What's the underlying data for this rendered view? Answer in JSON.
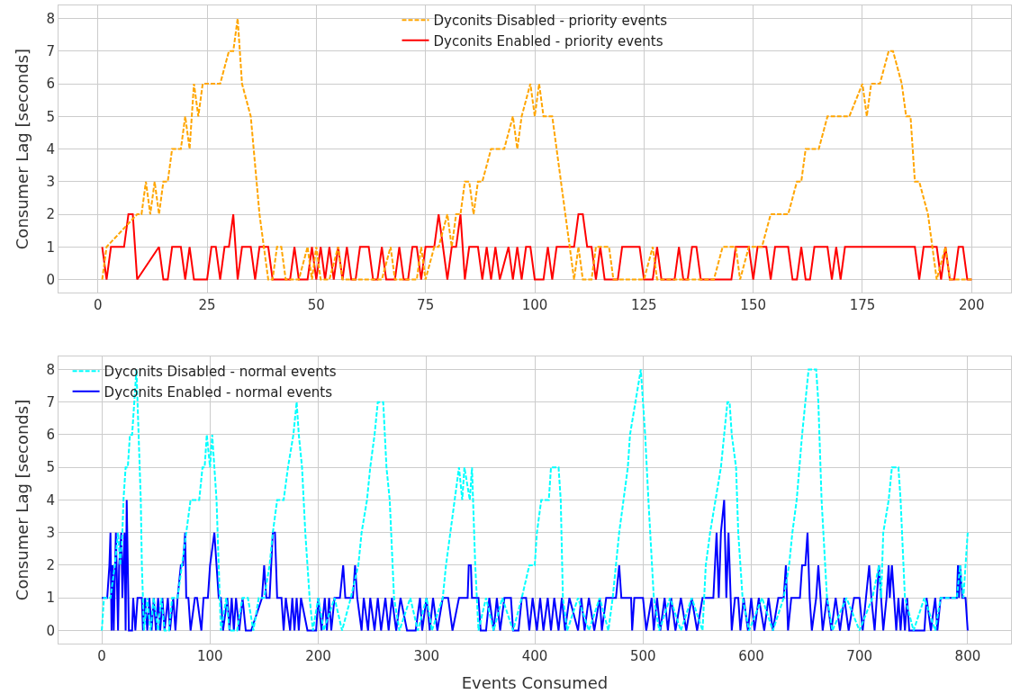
{
  "chart_data": [
    {
      "type": "line",
      "ylabel": "Consumer Lag [seconds]",
      "xlim": [
        -9,
        209
      ],
      "xticks": [
        0,
        25,
        50,
        75,
        100,
        125,
        150,
        175,
        200
      ],
      "ylim": [
        -0.4,
        8.4
      ],
      "yticks": [
        0,
        1,
        2,
        3,
        4,
        5,
        6,
        7,
        8
      ],
      "grid": true,
      "legend": "top",
      "marker": "none",
      "series": [
        {
          "name": "Dyconits Disabled - priority events",
          "color": "#ffa500",
          "line_style": "dashed",
          "x": [
            1,
            2,
            9,
            10,
            11,
            12,
            13,
            14,
            15,
            16,
            17,
            19,
            20,
            21,
            22,
            23,
            24,
            28,
            30,
            31,
            32,
            33,
            35,
            37,
            39,
            40,
            41,
            42,
            43,
            46,
            48,
            49,
            50,
            51,
            53,
            55,
            56,
            59,
            61,
            65,
            67,
            68,
            70,
            73,
            74,
            75,
            77,
            78,
            80,
            81,
            82,
            83,
            84,
            85,
            86,
            87,
            88,
            90,
            93,
            95,
            96,
            97,
            99,
            100,
            101,
            102,
            104,
            106,
            107,
            108,
            109,
            110,
            111,
            113,
            114,
            117,
            118,
            125,
            127,
            128,
            131,
            136,
            141,
            143,
            146,
            147,
            149,
            152,
            154,
            158,
            160,
            161,
            162,
            165,
            167,
            172,
            175,
            176,
            177,
            179,
            181,
            182,
            184,
            185,
            186,
            187,
            188,
            190,
            191,
            192,
            194,
            195,
            200
          ],
          "values": [
            0,
            1,
            2,
            2,
            3,
            2,
            3,
            2,
            3,
            3,
            4,
            4,
            5,
            4,
            6,
            5,
            6,
            6,
            7,
            7,
            8,
            6,
            5,
            2,
            0,
            0,
            1,
            1,
            0,
            0,
            1,
            0,
            1,
            0,
            0,
            1,
            0,
            0,
            0,
            0,
            1,
            0,
            0,
            0,
            1,
            0,
            1,
            1,
            2,
            1,
            2,
            2,
            3,
            3,
            2,
            3,
            3,
            4,
            4,
            5,
            4,
            5,
            6,
            5,
            6,
            5,
            5,
            3,
            2,
            1,
            0,
            1,
            0,
            0,
            1,
            1,
            0,
            0,
            1,
            0,
            0,
            0,
            0,
            1,
            1,
            0,
            1,
            1,
            2,
            2,
            3,
            3,
            4,
            4,
            5,
            5,
            6,
            5,
            6,
            6,
            7,
            7,
            6,
            5,
            5,
            3,
            3,
            2,
            1,
            0,
            1,
            0,
            0
          ]
        },
        {
          "name": "Dyconits Enabled - priority events",
          "color": "#ff0000",
          "line_style": "solid",
          "x": [
            1,
            2,
            3,
            6,
            7,
            8,
            9,
            14,
            15,
            16,
            17,
            19,
            20,
            21,
            22,
            25,
            26,
            27,
            28,
            29,
            30,
            31,
            32,
            33,
            35,
            36,
            37,
            39,
            40,
            44,
            45,
            46,
            48,
            49,
            50,
            51,
            52,
            53,
            54,
            55,
            56,
            57,
            58,
            59,
            60,
            62,
            63,
            64,
            65,
            66,
            68,
            69,
            70,
            71,
            72,
            73,
            74,
            75,
            77,
            78,
            80,
            81,
            82,
            83,
            84,
            85,
            87,
            88,
            89,
            90,
            91,
            92,
            94,
            95,
            96,
            97,
            98,
            99,
            100,
            102,
            103,
            104,
            105,
            109,
            110,
            111,
            112,
            113,
            114,
            115,
            116,
            119,
            120,
            124,
            125,
            127,
            128,
            129,
            132,
            133,
            134,
            135,
            136,
            137,
            138,
            145,
            146,
            149,
            150,
            151,
            153,
            154,
            155,
            158,
            159,
            160,
            161,
            162,
            163,
            164,
            167,
            168,
            169,
            170,
            171,
            187,
            188,
            189,
            192,
            193,
            194,
            195,
            196,
            197,
            198,
            199,
            200
          ],
          "values": [
            1,
            0,
            1,
            1,
            2,
            2,
            0,
            1,
            0,
            0,
            1,
            1,
            0,
            1,
            0,
            0,
            1,
            1,
            0,
            1,
            1,
            2,
            0,
            1,
            1,
            0,
            1,
            1,
            0,
            0,
            1,
            0,
            0,
            1,
            0,
            1,
            0,
            1,
            0,
            1,
            0,
            1,
            0,
            0,
            1,
            1,
            0,
            0,
            1,
            0,
            0,
            1,
            0,
            0,
            1,
            1,
            0,
            1,
            1,
            2,
            0,
            1,
            1,
            2,
            0,
            1,
            1,
            0,
            1,
            0,
            1,
            0,
            1,
            0,
            1,
            0,
            1,
            1,
            0,
            0,
            1,
            0,
            1,
            1,
            2,
            2,
            1,
            1,
            0,
            1,
            0,
            0,
            1,
            1,
            0,
            0,
            1,
            0,
            0,
            1,
            0,
            0,
            1,
            1,
            0,
            0,
            1,
            1,
            0,
            1,
            1,
            0,
            1,
            1,
            0,
            0,
            1,
            0,
            0,
            1,
            1,
            0,
            1,
            0,
            1,
            1,
            0,
            1,
            1,
            0,
            1,
            0,
            0,
            1,
            1,
            0,
            0
          ]
        }
      ]
    },
    {
      "type": "line",
      "xlabel": "Events Consumed",
      "ylabel": "Consumer Lag [seconds]",
      "xlim": [
        -40,
        840
      ],
      "xticks": [
        0,
        100,
        200,
        300,
        400,
        500,
        600,
        700,
        800
      ],
      "ylim": [
        -0.4,
        8.4
      ],
      "yticks": [
        0,
        1,
        2,
        3,
        4,
        5,
        6,
        7,
        8
      ],
      "grid": true,
      "legend": "top left",
      "marker": "none",
      "series": [
        {
          "name": "Dyconits Disabled - normal events",
          "color": "#00ffff",
          "line_style": "dashed",
          "x": [
            0,
            2,
            8,
            12,
            15,
            17,
            19,
            20,
            22,
            24,
            26,
            28,
            30,
            32,
            34,
            36,
            37,
            39,
            42,
            45,
            48,
            52,
            55,
            58,
            62,
            65,
            70,
            74,
            78,
            82,
            90,
            93,
            95,
            97,
            100,
            102,
            104,
            106,
            108,
            110,
            115,
            118,
            125,
            130,
            135,
            140,
            145,
            150,
            155,
            158,
            162,
            168,
            172,
            177,
            180,
            182,
            185,
            188,
            192,
            195,
            200,
            205,
            215,
            222,
            230,
            237,
            240,
            245,
            248,
            252,
            255,
            260,
            263,
            266,
            270,
            275,
            285,
            292,
            300,
            305,
            315,
            318,
            322,
            326,
            330,
            333,
            335,
            340,
            342,
            345,
            348,
            355,
            362,
            370,
            380,
            388,
            395,
            400,
            402,
            406,
            413,
            415,
            422,
            424,
            426,
            430,
            440,
            450,
            460,
            468,
            472,
            475,
            478,
            482,
            486,
            488,
            493,
            498,
            500,
            502,
            505,
            510,
            515,
            525,
            535,
            545,
            555,
            558,
            562,
            567,
            572,
            575,
            578,
            580,
            582,
            586,
            588,
            592,
            598,
            610,
            620,
            630,
            635,
            638,
            642,
            647,
            650,
            653,
            660,
            662,
            665,
            670,
            675,
            688,
            700,
            712,
            718,
            720,
            722,
            727,
            730,
            736,
            738,
            742,
            750,
            760,
            770,
            775,
            790,
            793,
            796,
            800
          ],
          "values": [
            0,
            1,
            1,
            2,
            3,
            2,
            3,
            4,
            5,
            5,
            6,
            6,
            7,
            8,
            6,
            4,
            2,
            0,
            1,
            0,
            1,
            0,
            1,
            0,
            0,
            1,
            1,
            2,
            3,
            4,
            4,
            5,
            5,
            6,
            5,
            6,
            5,
            4,
            2,
            0,
            1,
            0,
            0,
            1,
            1,
            0,
            1,
            1,
            2,
            3,
            4,
            4,
            5,
            6,
            7,
            6,
            5,
            3,
            1,
            0,
            1,
            0,
            1,
            0,
            1,
            2,
            3,
            4,
            5,
            6,
            7,
            7,
            5,
            4,
            1,
            0,
            1,
            0,
            1,
            0,
            1,
            2,
            3,
            4,
            5,
            4,
            5,
            4,
            5,
            2,
            0,
            1,
            0,
            1,
            0,
            1,
            2,
            2,
            3,
            4,
            4,
            5,
            5,
            4,
            1,
            0,
            1,
            0,
            1,
            0,
            1,
            2,
            3,
            4,
            5,
            6,
            7,
            8,
            7,
            6,
            4,
            1,
            0,
            1,
            0,
            1,
            0,
            2,
            3,
            4,
            5,
            6,
            7,
            7,
            6,
            5,
            3,
            1,
            0,
            1,
            0,
            1,
            2,
            3,
            4,
            6,
            7,
            8,
            8,
            7,
            4,
            1,
            0,
            1,
            0,
            1,
            2,
            1,
            3,
            4,
            5,
            5,
            4,
            1,
            0,
            1,
            0,
            1,
            1,
            2,
            1,
            3
          ]
        },
        {
          "name": "Dyconits Enabled - normal events",
          "color": "#0000ff",
          "line_style": "solid",
          "x": [
            0,
            5,
            7,
            8,
            9,
            10,
            11,
            13,
            15,
            16,
            18,
            19,
            21,
            22,
            23,
            25,
            28,
            29,
            31,
            33,
            37,
            38,
            40,
            42,
            44,
            46,
            48,
            50,
            52,
            54,
            56,
            58,
            61,
            63,
            66,
            68,
            70,
            73,
            75,
            77,
            78,
            80,
            82,
            86,
            88,
            92,
            94,
            98,
            100,
            104,
            106,
            108,
            110,
            112,
            116,
            118,
            120,
            122,
            124,
            127,
            130,
            133,
            138,
            148,
            150,
            152,
            155,
            158,
            160,
            162,
            166,
            168,
            170,
            174,
            176,
            178,
            180,
            182,
            184,
            190,
            198,
            200,
            203,
            206,
            208,
            210,
            212,
            215,
            220,
            223,
            225,
            232,
            234,
            236,
            240,
            242,
            246,
            248,
            252,
            255,
            258,
            262,
            265,
            268,
            272,
            276,
            282,
            290,
            294,
            296,
            300,
            303,
            306,
            310,
            315,
            320,
            324,
            330,
            338,
            339,
            341,
            342,
            348,
            350,
            355,
            358,
            362,
            365,
            368,
            372,
            378,
            380,
            385,
            388,
            392,
            395,
            398,
            402,
            405,
            408,
            412,
            415,
            418,
            422,
            425,
            428,
            432,
            440,
            443,
            446,
            450,
            455,
            460,
            462,
            466,
            472,
            475,
            478,
            480,
            489,
            490,
            492,
            500,
            503,
            508,
            510,
            513,
            516,
            520,
            523,
            526,
            530,
            535,
            540,
            545,
            550,
            555,
            565,
            568,
            570,
            572,
            575,
            577,
            579,
            581,
            582,
            585,
            588,
            590,
            593,
            597,
            600,
            603,
            607,
            612,
            616,
            620,
            625,
            630,
            632,
            634,
            637,
            645,
            647,
            650,
            652,
            654,
            656,
            660,
            662,
            664,
            666,
            670,
            674,
            678,
            682,
            686,
            690,
            695,
            700,
            703,
            706,
            709,
            711,
            714,
            716,
            718,
            720,
            722,
            725,
            727,
            728,
            730,
            732,
            734,
            736,
            738,
            740,
            742,
            744,
            746,
            750,
            760,
            762,
            766,
            770,
            772,
            775,
            778,
            790,
            791,
            792,
            793,
            795,
            798,
            800
          ],
          "values": [
            1,
            1,
            2,
            3,
            0,
            2,
            0,
            3,
            0,
            2,
            3,
            1,
            3,
            0,
            4,
            0,
            0,
            1,
            0,
            1,
            1,
            0,
            1,
            0,
            1,
            0,
            1,
            0,
            1,
            0,
            1,
            0,
            1,
            0,
            1,
            0,
            1,
            2,
            2,
            3,
            1,
            1,
            0,
            1,
            1,
            0,
            1,
            1,
            2,
            3,
            2,
            1,
            1,
            0,
            1,
            0,
            1,
            0,
            1,
            0,
            1,
            0,
            0,
            1,
            2,
            1,
            1,
            3,
            3,
            1,
            1,
            0,
            1,
            0,
            1,
            0,
            1,
            0,
            1,
            0,
            0,
            1,
            0,
            1,
            0,
            1,
            0,
            1,
            1,
            2,
            1,
            1,
            2,
            1,
            0,
            1,
            0,
            1,
            0,
            1,
            0,
            1,
            0,
            1,
            0,
            1,
            0,
            0,
            1,
            0,
            1,
            0,
            1,
            0,
            1,
            1,
            0,
            1,
            1,
            2,
            2,
            1,
            1,
            0,
            0,
            1,
            0,
            1,
            0,
            1,
            1,
            0,
            0,
            1,
            1,
            0,
            1,
            0,
            1,
            0,
            1,
            0,
            1,
            0,
            1,
            0,
            1,
            0,
            1,
            0,
            1,
            0,
            1,
            0,
            1,
            1,
            1,
            2,
            1,
            1,
            0,
            1,
            1,
            0,
            1,
            0,
            1,
            0,
            1,
            0,
            1,
            0,
            1,
            0,
            1,
            0,
            1,
            1,
            3,
            1,
            3,
            4,
            1,
            3,
            1,
            0,
            1,
            1,
            0,
            1,
            0,
            1,
            0,
            1,
            0,
            1,
            0,
            1,
            1,
            2,
            0,
            1,
            1,
            2,
            2,
            3,
            1,
            0,
            1,
            2,
            1,
            0,
            1,
            0,
            1,
            0,
            1,
            0,
            1,
            1,
            0,
            1,
            2,
            1,
            0,
            1,
            2,
            1,
            0,
            1,
            2,
            1,
            2,
            1,
            0,
            1,
            0,
            1,
            0,
            1,
            0,
            0,
            0,
            1,
            0,
            1,
            0,
            1,
            1,
            1,
            2,
            1,
            2,
            1,
            1,
            0
          ]
        }
      ]
    }
  ]
}
